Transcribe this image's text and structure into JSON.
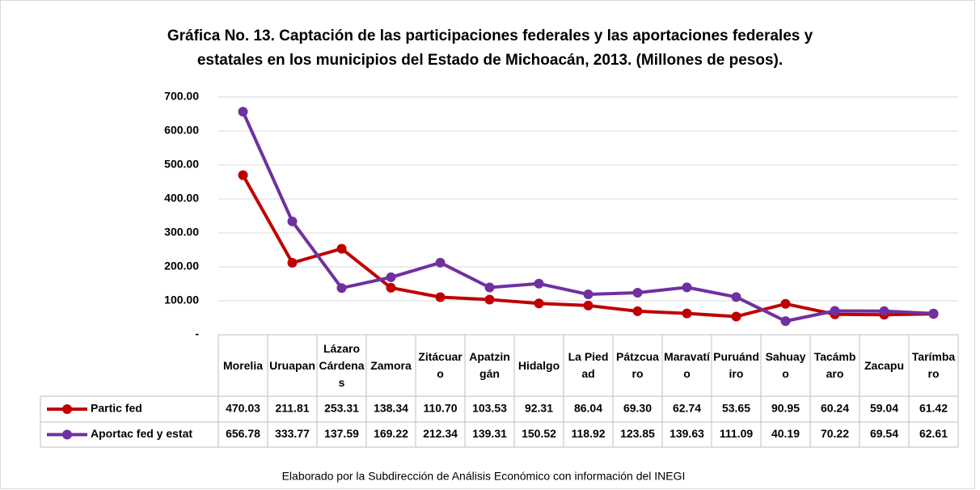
{
  "chart_data": {
    "type": "line",
    "title": "Gráfica No. 13. Captación de las participaciones federales y las aportaciones federales y estatales en los municipios del Estado de Michoacán, 2013. (Millones de pesos).",
    "footnote": "Elaborado por la Subdirección de Análisis Económico con información del INEGI",
    "categories": [
      "Morelia",
      "Uruapan",
      "Lázaro Cárdenas",
      "Zamora",
      "Zitácuaro",
      "Apatzingán",
      "Hidalgo",
      "La Piedad",
      "Pátzcuaro",
      "Maravatío",
      "Puruándiro",
      "Sahuayo",
      "Tacámbaro",
      "Zacapu",
      "Tarímbaro"
    ],
    "series": [
      {
        "name": "Partic fed",
        "color": "#c00000",
        "values": [
          470.03,
          211.81,
          253.31,
          138.34,
          110.7,
          103.53,
          92.31,
          86.04,
          69.3,
          62.74,
          53.65,
          90.95,
          60.24,
          59.04,
          61.42
        ],
        "value_labels": [
          "470.03",
          "211.81",
          "253.31",
          "138.34",
          "110.70",
          "103.53",
          "92.31",
          "86.04",
          "69.30",
          "62.74",
          "53.65",
          "90.95",
          "60.24",
          "59.04",
          "61.42"
        ]
      },
      {
        "name": "Aportac fed y estat",
        "color": "#7030a0",
        "values": [
          656.78,
          333.77,
          137.59,
          169.22,
          212.34,
          139.31,
          150.52,
          118.92,
          123.85,
          139.63,
          111.09,
          40.19,
          70.22,
          69.54,
          62.61
        ],
        "value_labels": [
          "656.78",
          "333.77",
          "137.59",
          "169.22",
          "212.34",
          "139.31",
          "150.52",
          "118.92",
          "123.85",
          "139.63",
          "111.09",
          "40.19",
          "70.22",
          "69.54",
          "62.61"
        ]
      }
    ],
    "ylim": [
      0,
      700
    ],
    "yticks": [
      {
        "value": 0,
        "label": "-"
      },
      {
        "value": 100,
        "label": "100.00"
      },
      {
        "value": 200,
        "label": "200.00"
      },
      {
        "value": 300,
        "label": "300.00"
      },
      {
        "value": 400,
        "label": "400.00"
      },
      {
        "value": 500,
        "label": "500.00"
      },
      {
        "value": 600,
        "label": "600.00"
      },
      {
        "value": 700,
        "label": "700.00"
      }
    ],
    "grid": true
  }
}
